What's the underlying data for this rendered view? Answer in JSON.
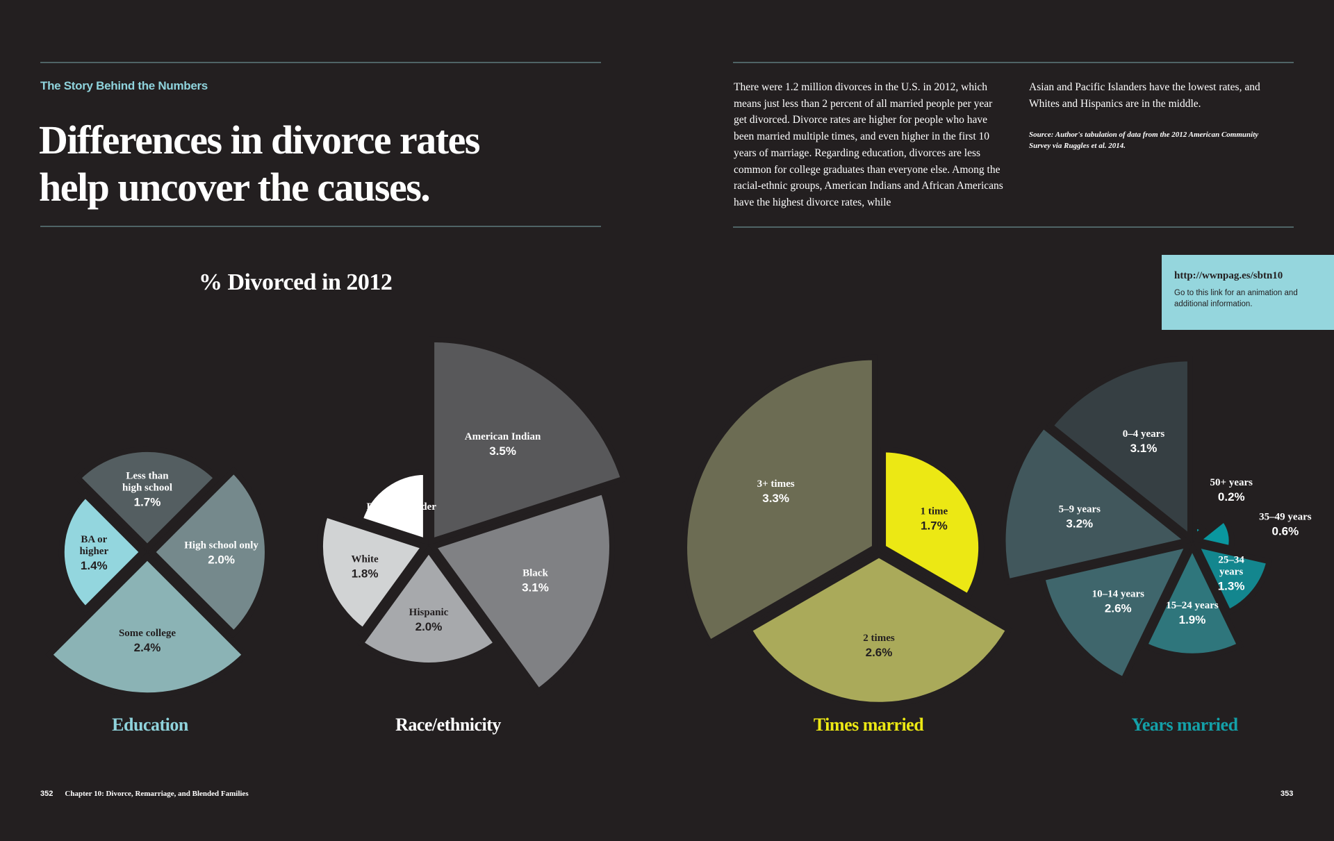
{
  "header": {
    "kicker": "The Story Behind the Numbers",
    "headline_line1": "Differences in divorce rates",
    "headline_line2": "help uncover the causes.",
    "intro_col1": "There were 1.2 million divorces in the U.S. in 2012, which means just less than 2 percent of all married people per year get divorced. Divorce rates are higher for people who have been married multiple times, and even higher in the first 10 years of marriage. Regarding education, divorces are less common for college graduates than everyone else. Among the racial-ethnic groups, American Indians and African Americans have the highest divorce rates, while",
    "intro_col2": "Asian and Pacific Islanders have the lowest rates, and Whites and Hispanics are in the middle.",
    "source": "Source: Author's tabulation of data from the 2012 American Community Survey via Ruggles et al. 2014."
  },
  "linkbox": {
    "url": "http://wwnpag.es/sbtn10",
    "description": "Go to this link for an animation and additional information."
  },
  "footer": {
    "left_page": "352",
    "chapter": "Chapter 10: Divorce, Remarriage, and Blended Families",
    "right_page": "353"
  },
  "colors": {
    "background": "#231f20",
    "accent_teal": "#8fd3dc",
    "times_yellow": "#ece814",
    "years_teal": "#14a0a8"
  },
  "chart_data": [
    {
      "type": "pie",
      "subtype": "polar-area",
      "title": "% Divorced in 2012",
      "name": "Education",
      "unit": "%",
      "label_color": "#8fd3dc",
      "categories": [
        "Less than high school",
        "High school only",
        "Some college",
        "BA or higher"
      ],
      "labels": [
        [
          "Less than",
          "high school"
        ],
        [
          "High school only"
        ],
        [
          "Some college"
        ],
        [
          "BA or",
          "higher"
        ]
      ],
      "values": [
        1.7,
        2.0,
        2.4,
        1.4
      ],
      "colors": [
        "#545e61",
        "#75898c",
        "#8bb3b5",
        "#93d6de"
      ],
      "text_colors": [
        "#ffffff",
        "#ffffff",
        "#231f20",
        "#231f20"
      ]
    },
    {
      "type": "pie",
      "subtype": "polar-area",
      "name": "Race/ethnicity",
      "unit": "%",
      "label_color": "#ffffff",
      "categories": [
        "American Indian",
        "Black",
        "Hispanic",
        "White",
        "Asian or Pacific Islander"
      ],
      "labels": [
        [
          "American Indian"
        ],
        [
          "Black"
        ],
        [
          "Hispanic"
        ],
        [
          "White"
        ],
        [
          "Asian or",
          "Pacific Islander"
        ]
      ],
      "values": [
        3.5,
        3.1,
        2.0,
        1.8,
        1.2
      ],
      "colors": [
        "#58585a",
        "#808184",
        "#a7a9ac",
        "#d1d3d4",
        "#ffffff"
      ],
      "text_colors": [
        "#ffffff",
        "#ffffff",
        "#231f20",
        "#231f20",
        "#ffffff"
      ]
    },
    {
      "type": "pie",
      "subtype": "polar-area",
      "name": "Times married",
      "unit": "%",
      "label_color": "#ece814",
      "categories": [
        "1 time",
        "2 times",
        "3+ times"
      ],
      "labels": [
        [
          "1 time"
        ],
        [
          "2 times"
        ],
        [
          "3+ times"
        ]
      ],
      "values": [
        1.7,
        2.6,
        3.3
      ],
      "colors": [
        "#ece814",
        "#aaaa5a",
        "#6c6c53"
      ],
      "text_colors": [
        "#231f20",
        "#231f20",
        "#ffffff"
      ]
    },
    {
      "type": "pie",
      "subtype": "polar-area",
      "name": "Years married",
      "unit": "%",
      "label_color": "#14a0a8",
      "categories": [
        "50+ years",
        "35–49 years",
        "25–34 years",
        "15–24 years",
        "10–14 years",
        "5–9 years",
        "0–4 years"
      ],
      "labels": [
        [
          "50+ years"
        ],
        [
          "35–49 years"
        ],
        [
          "25–34",
          "years"
        ],
        [
          "15–24 years"
        ],
        [
          "10–14 years"
        ],
        [
          "5–9 years"
        ],
        [
          "0–4 years"
        ]
      ],
      "values": [
        0.2,
        0.6,
        1.3,
        1.9,
        2.6,
        3.2,
        3.1
      ],
      "colors": [
        "#0e9aa3",
        "#0a979f",
        "#13868e",
        "#2f767c",
        "#3f666c",
        "#41575c",
        "#363f43"
      ],
      "text_colors": [
        "#ffffff",
        "#ffffff",
        "#ffffff",
        "#ffffff",
        "#ffffff",
        "#ffffff",
        "#ffffff"
      ]
    }
  ]
}
